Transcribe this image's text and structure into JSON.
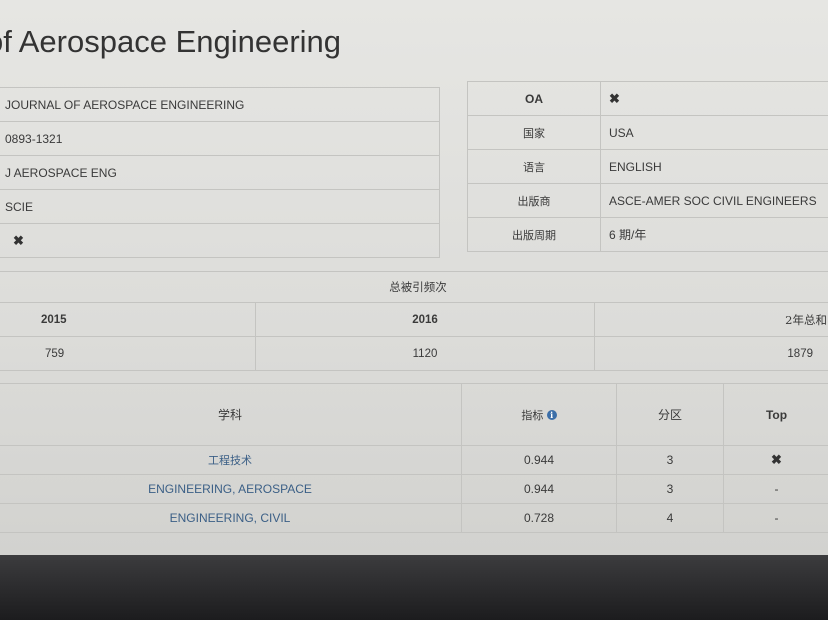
{
  "title": "of Aerospace Engineering",
  "journal_info": {
    "full_name": "JOURNAL OF AEROSPACE ENGINEERING",
    "issn": "0893-1321",
    "abbr": "J AEROSPACE ENG",
    "index": "SCIE",
    "flag": "✖"
  },
  "details": [
    {
      "label": "OA",
      "value": "✖"
    },
    {
      "label": "国家",
      "value": "USA"
    },
    {
      "label": "语言",
      "value": "ENGLISH"
    },
    {
      "label": "出版商",
      "value": "ASCE-AMER SOC CIVIL ENGINEERS"
    },
    {
      "label": "出版周期",
      "value": "6 期/年"
    }
  ],
  "citations": {
    "header": "总被引频次",
    "columns": [
      "2015",
      "2016",
      "2年总和"
    ],
    "values": [
      "759",
      "1120",
      "1879"
    ]
  },
  "subjects": {
    "columns": [
      "学科",
      "指标",
      "分区",
      "Top"
    ],
    "info_icon": "info-circle-icon",
    "rows": [
      {
        "subject": "工程技术",
        "metric": "0.944",
        "zone": "3",
        "top": "✖"
      },
      {
        "subject": "ENGINEERING, AEROSPACE",
        "metric": "0.944",
        "zone": "3",
        "top": "-"
      },
      {
        "subject": "ENGINEERING, CIVIL",
        "metric": "0.728",
        "zone": "4",
        "top": "-"
      }
    ]
  }
}
